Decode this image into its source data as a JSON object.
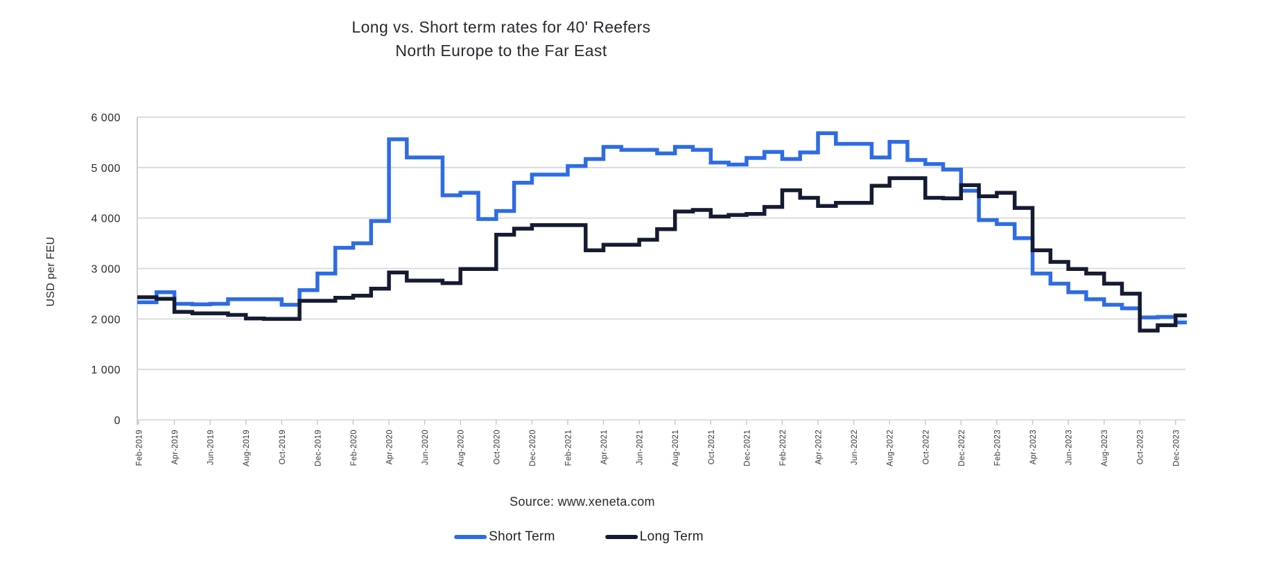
{
  "title": {
    "line1": "Long vs. Short term rates for 40' Reefers",
    "line2": "North Europe to the Far East"
  },
  "source": "Source: www.xeneta.com",
  "legend": [
    {
      "label": "Short Term",
      "color": "#2E6CE5"
    },
    {
      "label": "Long Term",
      "color": "#141B32"
    }
  ],
  "axes": {
    "y_title": "USD per FEU"
  },
  "colors": {
    "short_term": "#2E6CE5",
    "long_term": "#141B32",
    "gridline": "#D9D9D9",
    "axis": "#C9C9C9",
    "text": "#26292E"
  },
  "chart_data": {
    "type": "line",
    "step": true,
    "title": "Long vs. Short term rates for 40' Reefers",
    "subtitle": "North Europe to the Far East",
    "xlabel": "",
    "ylabel": "USD per FEU",
    "ylim": [
      0,
      6000
    ],
    "grid": "horizontal",
    "legend_position": "bottom",
    "y_ticks": [
      {
        "value": 0,
        "label": "0"
      },
      {
        "value": 1000,
        "label": "1 000"
      },
      {
        "value": 2000,
        "label": "2 000"
      },
      {
        "value": 3000,
        "label": "3 000"
      },
      {
        "value": 4000,
        "label": "4 000"
      },
      {
        "value": 5000,
        "label": "5 000"
      },
      {
        "value": 6000,
        "label": "6 000"
      }
    ],
    "x_tick_labels": [
      "Feb-2019",
      "Apr-2019",
      "Jun-2019",
      "Aug-2019",
      "Oct-2019",
      "Dec-2019",
      "Feb-2020",
      "Apr-2020",
      "Jun-2020",
      "Aug-2020",
      "Oct-2020",
      "Dec-2020",
      "Feb-2021",
      "Apr-2021",
      "Jun-2021",
      "Aug-2021",
      "Oct-2021",
      "Dec-2021",
      "Feb-2022",
      "Apr-2022",
      "Jun-2022",
      "Aug-2022",
      "Oct-2022",
      "Dec-2022",
      "Feb-2023",
      "Apr-2023",
      "Jun-2023",
      "Aug-2023",
      "Oct-2023",
      "Dec-2023"
    ],
    "x": [
      "Feb-2019",
      "Mar-2019",
      "Apr-2019",
      "May-2019",
      "Jun-2019",
      "Jul-2019",
      "Aug-2019",
      "Sep-2019",
      "Oct-2019",
      "Nov-2019",
      "Dec-2019",
      "Jan-2020",
      "Feb-2020",
      "Mar-2020",
      "Apr-2020",
      "May-2020",
      "Jun-2020",
      "Jul-2020",
      "Aug-2020",
      "Sep-2020",
      "Oct-2020",
      "Nov-2020",
      "Dec-2020",
      "Jan-2021",
      "Feb-2021",
      "Mar-2021",
      "Apr-2021",
      "May-2021",
      "Jun-2021",
      "Jul-2021",
      "Aug-2021",
      "Sep-2021",
      "Oct-2021",
      "Nov-2021",
      "Dec-2021",
      "Jan-2022",
      "Feb-2022",
      "Mar-2022",
      "Apr-2022",
      "May-2022",
      "Jun-2022",
      "Jul-2022",
      "Aug-2022",
      "Sep-2022",
      "Oct-2022",
      "Nov-2022",
      "Dec-2022",
      "Jan-2023",
      "Feb-2023",
      "Mar-2023",
      "Apr-2023",
      "May-2023",
      "Jun-2023",
      "Jul-2023",
      "Aug-2023",
      "Sep-2023",
      "Oct-2023",
      "Nov-2023",
      "Dec-2023"
    ],
    "series": [
      {
        "name": "Short Term",
        "color": "#2E6CE5",
        "values": [
          2330,
          2530,
          2300,
          2290,
          2300,
          2390,
          2390,
          2390,
          2280,
          2570,
          2900,
          3410,
          3500,
          3940,
          5560,
          5200,
          5200,
          4450,
          4500,
          3980,
          4140,
          4700,
          4860,
          4860,
          5030,
          5170,
          5410,
          5350,
          5350,
          5280,
          5410,
          5350,
          5100,
          5060,
          5190,
          5310,
          5170,
          5300,
          5680,
          5470,
          5470,
          5200,
          5510,
          5150,
          5070,
          4960,
          4540,
          3960,
          3880,
          3600,
          2900,
          2700,
          2530,
          2390,
          2280,
          2210,
          2030,
          2040,
          1930
        ]
      },
      {
        "name": "Long Term",
        "color": "#141B32",
        "values": [
          2430,
          2400,
          2140,
          2110,
          2110,
          2080,
          2010,
          2000,
          2000,
          2360,
          2360,
          2420,
          2460,
          2600,
          2920,
          2760,
          2760,
          2710,
          2990,
          2990,
          3670,
          3790,
          3860,
          3860,
          3860,
          3360,
          3470,
          3470,
          3570,
          3780,
          4130,
          4160,
          4030,
          4060,
          4080,
          4220,
          4550,
          4400,
          4240,
          4300,
          4300,
          4640,
          4790,
          4790,
          4400,
          4390,
          4650,
          4430,
          4500,
          4200,
          3360,
          3130,
          2990,
          2900,
          2700,
          2500,
          1770,
          1875,
          2070
        ]
      }
    ]
  }
}
